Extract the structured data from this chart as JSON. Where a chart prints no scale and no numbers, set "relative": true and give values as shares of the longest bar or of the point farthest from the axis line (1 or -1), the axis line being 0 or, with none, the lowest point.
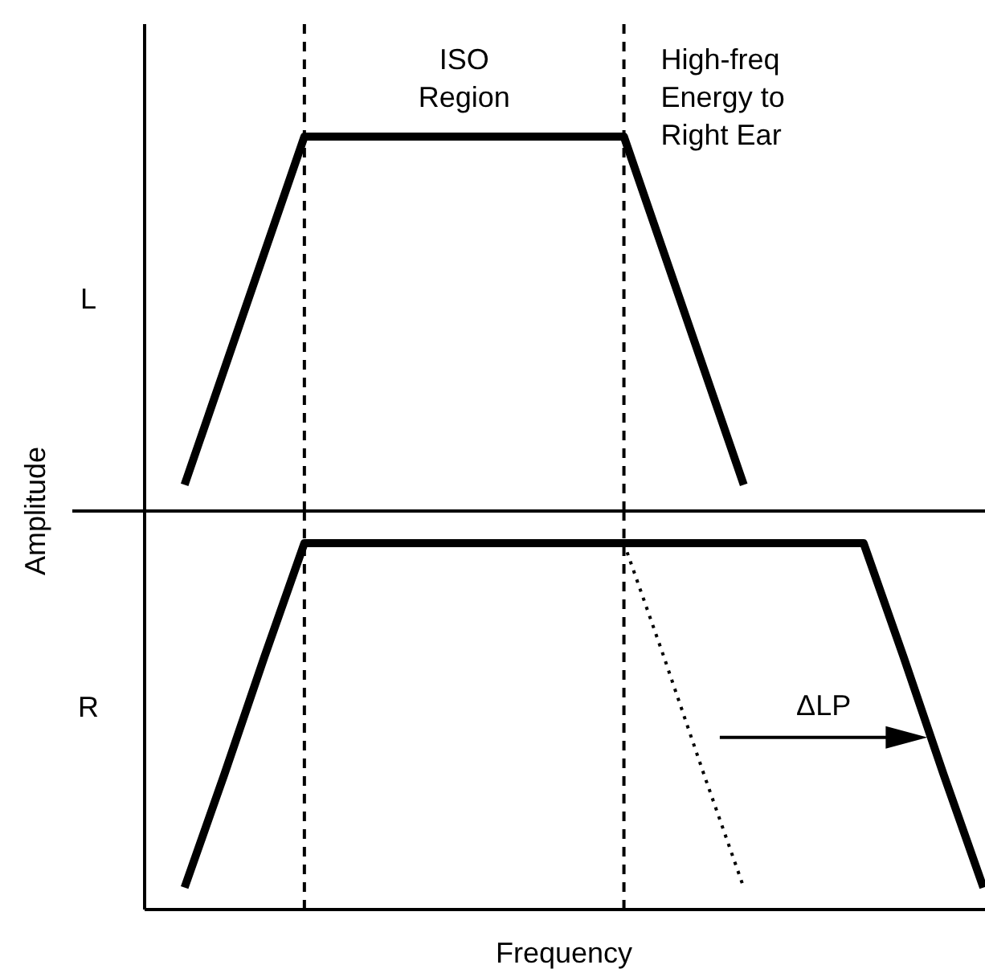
{
  "chart_data": [
    {
      "type": "line",
      "relative": true,
      "ylabel": "L",
      "categories": [
        null,
        null,
        null,
        null,
        null,
        null,
        null,
        null,
        null,
        null,
        null,
        null,
        null,
        null,
        null,
        null,
        null,
        null,
        null,
        null,
        null,
        null
      ],
      "series": [
        {
          "color": "#000000",
          "values": [
            null,
            0.07,
            0.38,
            0.69,
            1,
            1,
            1,
            1,
            1,
            1,
            1,
            1,
            1,
            0.69,
            0.38,
            0.07,
            null,
            null,
            null,
            null,
            null,
            null
          ]
        }
      ],
      "annotations": [
        "ISO Region",
        "High-freq Energy to Right Ear"
      ],
      "line_style": "solid",
      "marker": "none",
      "grid": false
    },
    {
      "type": "line",
      "relative": true,
      "ylabel": "R",
      "xlabel": "Frequency",
      "categories": [
        null,
        null,
        null,
        null,
        null,
        null,
        null,
        null,
        null,
        null,
        null,
        null,
        null,
        null,
        null,
        null,
        null,
        null,
        null,
        null,
        null,
        null
      ],
      "series": [
        {
          "color": "#000000",
          "values": [
            null,
            0.06,
            0.37,
            0.69,
            1,
            1,
            1,
            1,
            1,
            1,
            1,
            1,
            1,
            1,
            1,
            1,
            1,
            1,
            1,
            0.69,
            0.37,
            0.06
          ]
        },
        {
          "color": "#000000",
          "line_style": "dotted",
          "values": [
            null,
            null,
            null,
            null,
            null,
            null,
            null,
            null,
            null,
            null,
            null,
            null,
            1,
            0.69,
            0.37,
            0.06,
            null,
            null,
            null,
            null,
            null,
            null
          ]
        }
      ],
      "annotations": [
        "ΔLP",
        "Amplitude"
      ],
      "line_style": "solid",
      "marker": "none",
      "grid": false
    }
  ]
}
